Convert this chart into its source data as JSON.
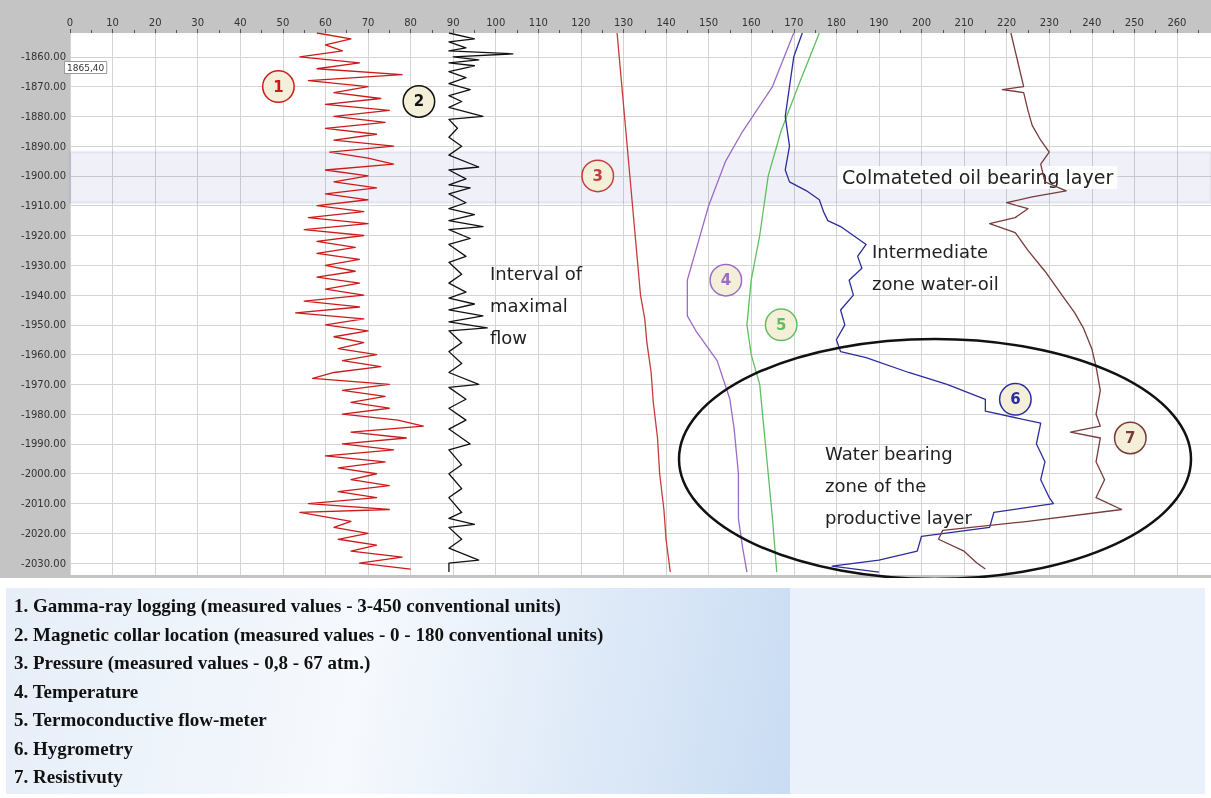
{
  "chart_data": {
    "type": "line",
    "xlim": [
      0,
      268
    ],
    "xticks": [
      0,
      10,
      20,
      30,
      40,
      50,
      60,
      70,
      80,
      90,
      100,
      110,
      120,
      130,
      140,
      150,
      160,
      170,
      180,
      190,
      200,
      210,
      220,
      230,
      240,
      250,
      260
    ],
    "ylim": [
      -2034,
      -1852
    ],
    "yticks": [
      {
        "value": -1860,
        "label": "-1860.00"
      },
      {
        "value": -1870,
        "label": "-1870.00"
      },
      {
        "value": -1880,
        "label": "-1880.00"
      },
      {
        "value": -1890,
        "label": "-1890.00"
      },
      {
        "value": -1900,
        "label": "-1900.00"
      },
      {
        "value": -1910,
        "label": "-1910.00"
      },
      {
        "value": -1920,
        "label": "-1920.00"
      },
      {
        "value": -1930,
        "label": "-1930.00"
      },
      {
        "value": -1940,
        "label": "-1940.00"
      },
      {
        "value": -1950,
        "label": "-1950.00"
      },
      {
        "value": -1960,
        "label": "-1960.00"
      },
      {
        "value": -1970,
        "label": "-1970.00"
      },
      {
        "value": -1980,
        "label": "-1980.00"
      },
      {
        "value": -1990,
        "label": "-1990.00"
      },
      {
        "value": -2000,
        "label": "-2000.00"
      },
      {
        "value": -2010,
        "label": "-2010.00"
      },
      {
        "value": -2020,
        "label": "-2020.00"
      },
      {
        "value": -2030,
        "label": "-2030.00"
      }
    ],
    "grid": true,
    "legend": false,
    "marker": "none",
    "line_style": "solid",
    "series": [
      {
        "name": "1",
        "color": "#cc1a1a",
        "x": [
          58,
          66,
          60,
          64,
          54,
          68,
          58,
          78,
          56,
          70,
          62,
          73,
          60,
          75,
          62,
          74,
          60,
          72,
          62,
          76,
          61,
          70,
          76,
          60,
          70,
          62,
          72,
          60,
          70,
          58,
          69,
          56,
          70,
          55,
          69,
          58,
          67,
          58,
          68,
          60,
          67,
          58,
          68,
          60,
          69,
          55,
          68,
          53,
          69,
          60,
          70,
          62,
          69,
          63,
          72,
          64,
          73,
          62,
          57,
          75,
          64,
          74,
          66,
          75,
          64,
          77,
          83,
          66,
          79,
          64,
          76,
          60,
          74,
          63,
          72,
          66,
          75,
          63,
          72,
          56,
          75,
          54,
          66,
          62,
          70,
          63,
          72,
          66,
          78,
          68,
          80
        ],
        "values": [
          -1852,
          -1854,
          -1856,
          -1858,
          -1860,
          -1862,
          -1864,
          -1866,
          -1868,
          -1870,
          -1872,
          -1874,
          -1876,
          -1878,
          -1880,
          -1882,
          -1884,
          -1886,
          -1888,
          -1890,
          -1892,
          -1894,
          -1896,
          -1898,
          -1900,
          -1902,
          -1904,
          -1906,
          -1908,
          -1910,
          -1912,
          -1914,
          -1916,
          -1918,
          -1920,
          -1922,
          -1924,
          -1926,
          -1928,
          -1930,
          -1932,
          -1934,
          -1936,
          -1938,
          -1940,
          -1942,
          -1944,
          -1946,
          -1948,
          -1950,
          -1952,
          -1954,
          -1956,
          -1958,
          -1960,
          -1962,
          -1964,
          -1966,
          -1968,
          -1970,
          -1972,
          -1974,
          -1976,
          -1978,
          -1980,
          -1982,
          -1984,
          -1986,
          -1988,
          -1990,
          -1992,
          -1994,
          -1996,
          -1998,
          -2000,
          -2002,
          -2004,
          -2006,
          -2008,
          -2010,
          -2012,
          -2013,
          -2016,
          -2018,
          -2020,
          -2022,
          -2024,
          -2026,
          -2028,
          -2030,
          -2032
        ]
      },
      {
        "name": "2",
        "color": "#111111",
        "x": [
          89,
          95,
          89,
          93,
          89,
          104,
          90,
          96,
          89,
          95,
          89,
          93,
          89,
          94,
          89,
          92,
          89,
          97,
          89,
          91,
          89,
          92,
          89,
          96,
          89,
          93,
          89,
          94,
          89,
          93,
          89,
          95,
          89,
          97,
          89,
          94,
          89,
          93,
          89,
          92,
          89,
          93,
          89,
          95,
          89,
          97,
          89,
          98,
          89,
          92,
          89,
          92,
          89,
          96,
          89,
          93,
          89,
          93,
          89,
          94,
          89,
          92,
          89,
          92,
          89,
          92,
          89,
          95,
          89,
          92,
          89,
          96,
          89,
          89
        ],
        "values": [
          -1852,
          -1854,
          -1855,
          -1857,
          -1858,
          -1859,
          -1860,
          -1861,
          -1862,
          -1863,
          -1865,
          -1867,
          -1869,
          -1871,
          -1873,
          -1875,
          -1877,
          -1880,
          -1881,
          -1884,
          -1887,
          -1890,
          -1893,
          -1897,
          -1898,
          -1901,
          -1903,
          -1904,
          -1906,
          -1909,
          -1911,
          -1913,
          -1915,
          -1917,
          -1918,
          -1921,
          -1923,
          -1927,
          -1929,
          -1933,
          -1936,
          -1939,
          -1941,
          -1943,
          -1945,
          -1947,
          -1949,
          -1951,
          -1952,
          -1956,
          -1959,
          -1963,
          -1966,
          -1970,
          -1971,
          -1975,
          -1978,
          -1982,
          -1985,
          -1990,
          -1992,
          -1997,
          -2000,
          -2005,
          -2008,
          -2013,
          -2015,
          -2017,
          -2018,
          -2022,
          -2025,
          -2029,
          -2030,
          -2033
        ]
      },
      {
        "name": "3",
        "color": "#c43c3c",
        "x": [
          128.5,
          129,
          129.5,
          130,
          130.5,
          131,
          131.5,
          132,
          132.5,
          133,
          133.5,
          134,
          135,
          135.5,
          136.5,
          137,
          138,
          138.5,
          139.5,
          140,
          141
        ],
        "values": [
          -1852,
          -1860,
          -1868,
          -1876,
          -1884,
          -1892,
          -1900,
          -1908,
          -1916,
          -1924,
          -1932,
          -1940,
          -1948,
          -1956,
          -1966,
          -1976,
          -1988,
          -2000,
          -2012,
          -2022,
          -2033
        ]
      },
      {
        "name": "4",
        "color": "#9b6bc8",
        "x": [
          170,
          165,
          158,
          154,
          150,
          147,
          145,
          145,
          147,
          152,
          155,
          156,
          157,
          157,
          158,
          159
        ],
        "values": [
          -1852,
          -1870,
          -1885,
          -1895,
          -1910,
          -1925,
          -1935,
          -1947,
          -1952,
          -1962,
          -1975,
          -1985,
          -2000,
          -2015,
          -2025,
          -2033
        ]
      },
      {
        "name": "5",
        "color": "#5fbf5f",
        "x": [
          176,
          171,
          167,
          164,
          162,
          160,
          159,
          160,
          162,
          163,
          164,
          165,
          166
        ],
        "values": [
          -1852,
          -1870,
          -1885,
          -1900,
          -1920,
          -1935,
          -1950,
          -1960,
          -1970,
          -1985,
          -2000,
          -2015,
          -2033
        ]
      },
      {
        "name": "6",
        "color": "#2c2c9c",
        "x": [
          172,
          170,
          169,
          168,
          169,
          168,
          169,
          173,
          176,
          177,
          178,
          181,
          184,
          187,
          185,
          186,
          183,
          184,
          181,
          182,
          180,
          181,
          187,
          197,
          206,
          215,
          215,
          228,
          227,
          229,
          228,
          230,
          231,
          217,
          216,
          200,
          199,
          190,
          179,
          190
        ],
        "values": [
          -1852,
          -1860,
          -1870,
          -1880,
          -1890,
          -1898,
          -1902,
          -1905,
          -1908,
          -1912,
          -1915,
          -1917,
          -1920,
          -1923,
          -1927,
          -1931,
          -1935,
          -1940,
          -1945,
          -1950,
          -1955,
          -1959,
          -1961,
          -1966,
          -1970,
          -1975,
          -1979,
          -1983,
          -1990,
          -1996,
          -2002,
          -2008,
          -2010,
          -2013,
          -2018,
          -2021,
          -2026,
          -2029,
          -2031,
          -2033
        ]
      },
      {
        "name": "7",
        "color": "#7a3b3b",
        "x": [
          221,
          222,
          223,
          224,
          219,
          224,
          225,
          226,
          228,
          230,
          228,
          229,
          234,
          226,
          220,
          225,
          222,
          216,
          222,
          225,
          229,
          233,
          236,
          238,
          240,
          241,
          242,
          241,
          242,
          235,
          242,
          241,
          243,
          241,
          247,
          225,
          205,
          204,
          210,
          213,
          215
        ],
        "values": [
          -1852,
          -1858,
          -1864,
          -1870,
          -1871,
          -1872,
          -1878,
          -1883,
          -1888,
          -1892,
          -1896,
          -1902,
          -1905,
          -1907,
          -1909,
          -1911,
          -1914,
          -1916,
          -1919,
          -1925,
          -1932,
          -1940,
          -1946,
          -1951,
          -1958,
          -1964,
          -1972,
          -1980,
          -1984,
          -1986,
          -1988,
          -1996,
          -2002,
          -2008,
          -2012,
          -2016,
          -2019,
          -2022,
          -2026,
          -2030,
          -2032
        ]
      }
    ],
    "bands": [
      {
        "axis": "y",
        "from": -1892,
        "to": -1909,
        "label": "Colmateted oil bearing layer",
        "color": "#3a3aa0"
      }
    ],
    "annotations": [
      "1865,40",
      "Interval of maximal flow",
      "Intermediate zone water-oil",
      "Water bearing zone of the productive layer",
      "1. Gamma-ray logging (measured values - 3-450 conventional units)",
      "2. Magnetic collar location (measured values - 0 - 180 conventional units)",
      "3. Pressure (measured values - 0,8 - 67 atm.)",
      "4. Temperature",
      "5. Termoconductive flow-meter",
      "6. Hygrometry",
      "7. Resistivuty"
    ]
  }
}
